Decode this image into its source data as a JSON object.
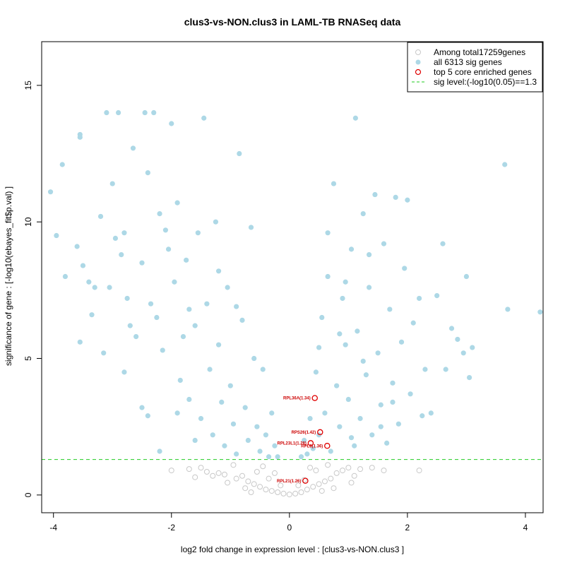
{
  "chart_data": {
    "type": "scatter",
    "title": "clus3-vs-NON.clus3 in LAML-TB RNASeq data",
    "xlabel": "log2 fold change in expression level : [clus3-vs-NON.clus3 ]",
    "ylabel": "significance of gene : [-log10(ebayes_fit$p.val) ]",
    "xlim": [
      -4.2,
      4.3
    ],
    "ylim": [
      -0.65,
      16.6
    ],
    "x_ticks": [
      -4,
      -2,
      0,
      2,
      4
    ],
    "y_ticks": [
      0,
      5,
      10,
      15
    ],
    "sig_level": 1.3,
    "legend": {
      "position": "top-right",
      "entries": [
        {
          "label": "Among total17259genes",
          "marker": "open-circle",
          "color": "#c8c8c8"
        },
        {
          "label": "all 6313 sig genes",
          "marker": "filled-circle",
          "color": "#add8e6"
        },
        {
          "label": "top 5 core enriched genes",
          "marker": "open-circle",
          "color": "#e00000"
        },
        {
          "label": "sig level:(-log10(0.05)==1.3",
          "marker": "dashed-line",
          "color": "#22cc22"
        }
      ]
    },
    "colors": {
      "nonsig": "#c8c8c8",
      "sig": "#add8e6",
      "core": "#e00000",
      "threshold": "#22cc22"
    },
    "series": [
      {
        "name": "Among total17259genes",
        "note": "sampled representative non-significant genes (p > 0.05)",
        "points": [
          [
            -1.5,
            1.0
          ],
          [
            -1.7,
            0.95
          ],
          [
            -2.0,
            0.9
          ],
          [
            -1.4,
            0.85
          ],
          [
            -1.2,
            0.8
          ],
          [
            -1.3,
            0.7
          ],
          [
            -1.1,
            0.75
          ],
          [
            -0.9,
            0.6
          ],
          [
            -0.8,
            0.7
          ],
          [
            -0.7,
            0.5
          ],
          [
            -0.6,
            0.4
          ],
          [
            -0.5,
            0.3
          ],
          [
            -0.4,
            0.2
          ],
          [
            -0.3,
            0.15
          ],
          [
            -0.2,
            0.1
          ],
          [
            -0.1,
            0.05
          ],
          [
            0.0,
            0.02
          ],
          [
            0.1,
            0.05
          ],
          [
            0.2,
            0.1
          ],
          [
            0.3,
            0.2
          ],
          [
            0.4,
            0.3
          ],
          [
            0.5,
            0.4
          ],
          [
            0.6,
            0.5
          ],
          [
            0.7,
            0.6
          ],
          [
            0.8,
            0.8
          ],
          [
            0.9,
            0.9
          ],
          [
            1.0,
            1.0
          ],
          [
            1.2,
            0.95
          ],
          [
            1.1,
            0.7
          ],
          [
            1.4,
            1.0
          ],
          [
            2.2,
            0.9
          ],
          [
            -0.95,
            1.1
          ],
          [
            -0.55,
            0.85
          ],
          [
            -0.35,
            0.6
          ],
          [
            0.25,
            0.55
          ],
          [
            0.45,
            0.9
          ],
          [
            0.65,
            1.1
          ],
          [
            -1.05,
            0.45
          ],
          [
            1.05,
            0.45
          ],
          [
            -0.75,
            0.25
          ],
          [
            0.75,
            0.25
          ],
          [
            -0.45,
            1.05
          ],
          [
            0.35,
            1.0
          ],
          [
            -1.6,
            0.65
          ],
          [
            1.6,
            0.9
          ],
          [
            -0.15,
            0.35
          ],
          [
            0.15,
            0.35
          ],
          [
            -0.25,
            0.8
          ],
          [
            0.55,
            0.15
          ],
          [
            -0.65,
            0.1
          ]
        ]
      },
      {
        "name": "all 6313 sig genes",
        "note": "sampled representative significant genes",
        "points": [
          [
            -4.05,
            11.1
          ],
          [
            -3.95,
            9.5
          ],
          [
            -3.85,
            12.1
          ],
          [
            -3.8,
            8.0
          ],
          [
            -3.6,
            9.1
          ],
          [
            -3.55,
            5.6
          ],
          [
            -3.55,
            13.2
          ],
          [
            -3.55,
            13.1
          ],
          [
            -3.5,
            8.4
          ],
          [
            -3.4,
            7.8
          ],
          [
            -3.35,
            6.6
          ],
          [
            -3.2,
            10.2
          ],
          [
            -3.15,
            5.2
          ],
          [
            -3.1,
            14.0
          ],
          [
            -3.05,
            7.6
          ],
          [
            -3.0,
            11.4
          ],
          [
            -2.9,
            14.0
          ],
          [
            -2.85,
            8.8
          ],
          [
            -2.8,
            9.6
          ],
          [
            -2.75,
            7.2
          ],
          [
            -2.7,
            6.2
          ],
          [
            -2.65,
            12.7
          ],
          [
            -2.6,
            5.8
          ],
          [
            -2.5,
            8.5
          ],
          [
            -2.45,
            14.0
          ],
          [
            -2.4,
            11.8
          ],
          [
            -2.35,
            7.0
          ],
          [
            -2.3,
            14.0
          ],
          [
            -2.25,
            6.5
          ],
          [
            -2.2,
            10.3
          ],
          [
            -2.15,
            5.3
          ],
          [
            -2.05,
            9.0
          ],
          [
            -2.0,
            13.6
          ],
          [
            -1.95,
            7.8
          ],
          [
            -1.9,
            10.7
          ],
          [
            -1.85,
            4.2
          ],
          [
            -1.8,
            5.8
          ],
          [
            -1.75,
            8.6
          ],
          [
            -1.7,
            3.5
          ],
          [
            -1.6,
            6.2
          ],
          [
            -1.55,
            9.6
          ],
          [
            -1.5,
            2.8
          ],
          [
            -1.45,
            13.8
          ],
          [
            -1.4,
            7.0
          ],
          [
            -1.35,
            4.6
          ],
          [
            -1.3,
            2.2
          ],
          [
            -1.25,
            10.0
          ],
          [
            -1.2,
            5.5
          ],
          [
            -1.15,
            3.4
          ],
          [
            -1.1,
            1.8
          ],
          [
            -1.05,
            7.6
          ],
          [
            -1.0,
            4.0
          ],
          [
            -0.95,
            2.6
          ],
          [
            -0.9,
            1.5
          ],
          [
            -0.85,
            12.5
          ],
          [
            -0.8,
            6.4
          ],
          [
            -0.75,
            3.2
          ],
          [
            -0.7,
            2.0
          ],
          [
            -0.65,
            9.8
          ],
          [
            -0.6,
            5.0
          ],
          [
            -0.55,
            2.5
          ],
          [
            -0.5,
            1.6
          ],
          [
            -0.45,
            4.6
          ],
          [
            -0.4,
            2.2
          ],
          [
            -0.35,
            1.4
          ],
          [
            -0.3,
            3.0
          ],
          [
            -0.25,
            1.8
          ],
          [
            -0.2,
            1.4
          ],
          [
            -2.2,
            1.6
          ],
          [
            -1.6,
            2.0
          ],
          [
            -1.9,
            3.0
          ],
          [
            -2.5,
            3.2
          ],
          [
            -2.8,
            4.5
          ],
          [
            -2.4,
            2.9
          ],
          [
            -1.2,
            8.2
          ],
          [
            -0.9,
            6.9
          ],
          [
            -1.7,
            6.8
          ],
          [
            -2.1,
            9.7
          ],
          [
            -3.3,
            7.6
          ],
          [
            -2.95,
            9.4
          ],
          [
            0.2,
            1.4
          ],
          [
            0.25,
            2.0
          ],
          [
            0.3,
            1.5
          ],
          [
            0.35,
            2.8
          ],
          [
            0.4,
            1.7
          ],
          [
            0.45,
            4.5
          ],
          [
            0.5,
            2.2
          ],
          [
            0.55,
            6.5
          ],
          [
            0.6,
            3.0
          ],
          [
            0.65,
            8.0
          ],
          [
            0.7,
            1.6
          ],
          [
            0.75,
            11.4
          ],
          [
            0.8,
            4.0
          ],
          [
            0.85,
            2.5
          ],
          [
            0.9,
            7.2
          ],
          [
            0.95,
            5.5
          ],
          [
            1.0,
            3.5
          ],
          [
            1.05,
            9.0
          ],
          [
            1.1,
            1.8
          ],
          [
            1.12,
            13.8
          ],
          [
            1.15,
            6.0
          ],
          [
            1.2,
            2.8
          ],
          [
            1.25,
            10.3
          ],
          [
            1.3,
            4.4
          ],
          [
            1.35,
            7.6
          ],
          [
            1.4,
            2.2
          ],
          [
            1.45,
            11.0
          ],
          [
            1.5,
            5.2
          ],
          [
            1.55,
            3.3
          ],
          [
            1.6,
            9.2
          ],
          [
            1.65,
            1.9
          ],
          [
            1.7,
            6.8
          ],
          [
            1.75,
            4.1
          ],
          [
            1.8,
            10.9
          ],
          [
            1.85,
            2.6
          ],
          [
            1.9,
            5.6
          ],
          [
            1.95,
            8.3
          ],
          [
            2.0,
            10.8
          ],
          [
            2.05,
            3.7
          ],
          [
            2.1,
            6.3
          ],
          [
            2.2,
            7.2
          ],
          [
            2.3,
            4.6
          ],
          [
            2.4,
            3.0
          ],
          [
            2.5,
            7.3
          ],
          [
            2.6,
            9.2
          ],
          [
            2.65,
            4.6
          ],
          [
            2.75,
            6.1
          ],
          [
            2.85,
            5.7
          ],
          [
            2.95,
            5.2
          ],
          [
            3.0,
            8.0
          ],
          [
            3.05,
            4.3
          ],
          [
            3.1,
            5.4
          ],
          [
            3.65,
            12.1
          ],
          [
            3.7,
            6.8
          ],
          [
            4.25,
            6.7
          ],
          [
            0.65,
            9.6
          ],
          [
            0.95,
            7.8
          ],
          [
            1.35,
            8.8
          ],
          [
            0.5,
            5.4
          ],
          [
            0.85,
            5.9
          ],
          [
            1.25,
            4.9
          ],
          [
            1.75,
            3.4
          ],
          [
            2.25,
            2.9
          ],
          [
            1.05,
            2.1
          ],
          [
            1.55,
            2.5
          ]
        ]
      },
      {
        "name": "top 5 core enriched genes",
        "points": [
          [
            0.43,
            3.55
          ],
          [
            0.52,
            2.3
          ],
          [
            0.36,
            1.9
          ],
          [
            0.64,
            1.8
          ],
          [
            0.27,
            0.52
          ]
        ]
      }
    ],
    "annotations": [
      {
        "label": "RPL36A(1.34)",
        "x": 0.43,
        "y": 3.55
      },
      {
        "label": "RPS26(1.42)",
        "x": 0.52,
        "y": 2.3
      },
      {
        "label": "RPL23L1(1.28)",
        "x": 0.36,
        "y": 1.9
      },
      {
        "label": "RPL8(1.36)",
        "x": 0.64,
        "y": 1.8
      },
      {
        "label": "RPL21(1.26)",
        "x": 0.27,
        "y": 0.52
      }
    ]
  }
}
